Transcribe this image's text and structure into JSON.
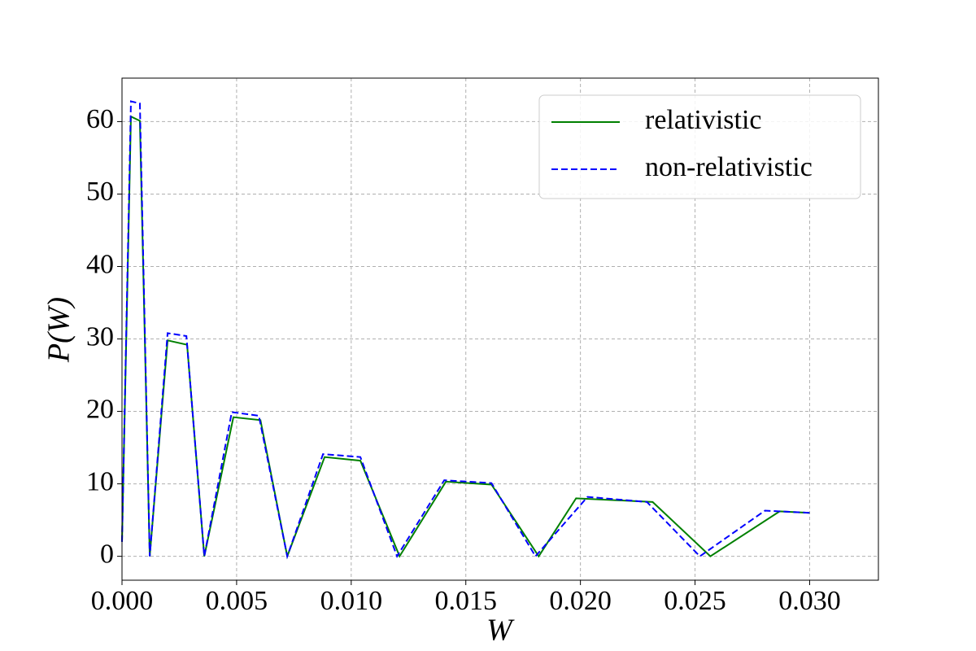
{
  "chart_data": {
    "type": "line",
    "xlabel": "W",
    "ylabel": "P(W)",
    "xlim": [
      0,
      0.033
    ],
    "ylim": [
      -3.3,
      66
    ],
    "xticks": [
      {
        "value": 0,
        "label": "0.000"
      },
      {
        "value": 0.005,
        "label": "0.005"
      },
      {
        "value": 0.01,
        "label": "0.010"
      },
      {
        "value": 0.015,
        "label": "0.015"
      },
      {
        "value": 0.02,
        "label": "0.020"
      },
      {
        "value": 0.025,
        "label": "0.025"
      },
      {
        "value": 0.03,
        "label": "0.030"
      }
    ],
    "yticks": [
      0,
      10,
      20,
      30,
      40,
      50,
      60
    ],
    "grid": true,
    "legend": "upper right",
    "series": [
      {
        "name": "relativistic",
        "color": "#008000",
        "dash": false,
        "x": [
          0,
          0.00039,
          0.00078,
          0.00121,
          0.00199,
          0.00284,
          0.00359,
          0.00486,
          0.00604,
          0.00721,
          0.00884,
          0.0104,
          0.01211,
          0.01413,
          0.01612,
          0.01818,
          0.01981,
          0.02315,
          0.02567,
          0.02869,
          0.03
        ],
        "values": [
          2,
          60.7,
          60.1,
          0,
          29.8,
          29.2,
          0,
          19.2,
          18.8,
          0,
          13.7,
          13.2,
          0,
          10.3,
          9.9,
          0,
          8.0,
          7.5,
          0,
          6.2,
          6.0
        ]
      },
      {
        "name": "non-relativistic",
        "color": "#0000ff",
        "dash": true,
        "x": [
          0,
          0.00039,
          0.00078,
          0.00121,
          0.00199,
          0.00281,
          0.00359,
          0.00479,
          0.00597,
          0.00721,
          0.00877,
          0.0104,
          0.012,
          0.01406,
          0.01612,
          0.01804,
          0.02031,
          0.0229,
          0.02521,
          0.02805,
          0.03
        ],
        "values": [
          2,
          62.8,
          62.5,
          0,
          30.8,
          30.4,
          0,
          19.9,
          19.4,
          0,
          14.1,
          13.7,
          0,
          10.5,
          10.1,
          0,
          8.2,
          7.5,
          0,
          6.3,
          6.0
        ]
      }
    ]
  }
}
